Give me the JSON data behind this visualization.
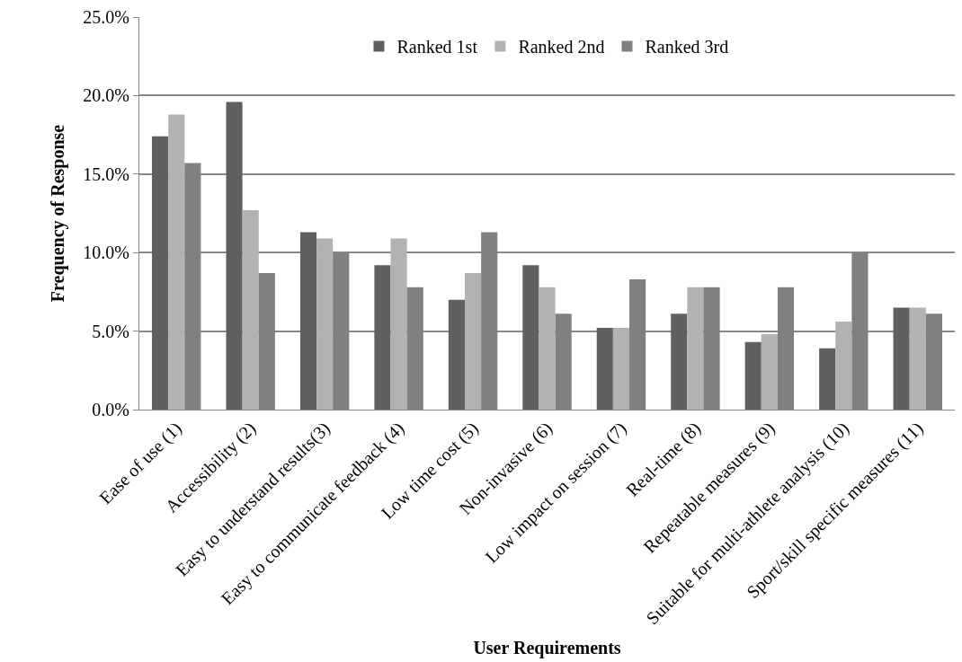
{
  "chart_data": {
    "type": "bar",
    "xlabel": "User Requirements",
    "ylabel": "Frequency of Response",
    "categories": [
      "Ease of use (1)",
      "Accessibility (2)",
      "Easy to understand results(3)",
      "Easy to communicate feedback (4)",
      "Low time cost (5)",
      "Non-invasive (6)",
      "Low impact on session (7)",
      "Real-time (8)",
      "Repeatable measures (9)",
      "Suitable for multi-athlete analysis (10)",
      "Sport/skill specific measures (11)"
    ],
    "series": [
      {
        "name": "Ranked 1st",
        "color": "#606060",
        "values": [
          17.4,
          19.6,
          11.3,
          9.2,
          7.0,
          9.2,
          5.2,
          6.1,
          4.3,
          3.9,
          6.5
        ]
      },
      {
        "name": "Ranked 2nd",
        "color": "#b2b2b2",
        "values": [
          18.8,
          12.7,
          10.9,
          10.9,
          8.7,
          7.8,
          5.2,
          7.8,
          4.8,
          5.6,
          6.5
        ]
      },
      {
        "name": "Ranked 3rd",
        "color": "#808080",
        "values": [
          15.7,
          8.7,
          10.0,
          7.8,
          11.3,
          6.1,
          8.3,
          7.8,
          7.8,
          10.0,
          6.1
        ]
      }
    ],
    "ylim": [
      0,
      25
    ],
    "yticks": [
      {
        "value": 0,
        "label": "0.0%"
      },
      {
        "value": 5,
        "label": "5.0%"
      },
      {
        "value": 10,
        "label": "10.0%"
      },
      {
        "value": 15,
        "label": "15.0%"
      },
      {
        "value": 20,
        "label": "20.0%"
      },
      {
        "value": 25,
        "label": "25.0%"
      }
    ],
    "grid": "y",
    "legend": "top"
  }
}
